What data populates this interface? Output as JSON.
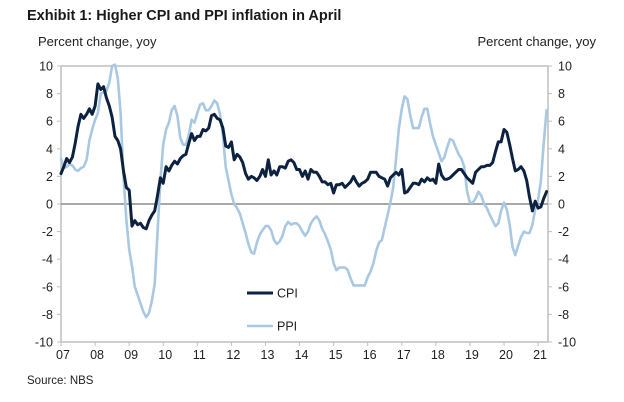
{
  "title": "Exhibit 1: Higher CPI and PPI inflation in April",
  "source": "Source: NBS",
  "colors": {
    "cpi": "#0d2240",
    "ppi": "#a9c8e2",
    "axis": "#bfbfbf",
    "zero": "#8a8a8a"
  },
  "chart_data": {
    "type": "line",
    "title": "Exhibit 1: Higher CPI and PPI inflation in April",
    "ylabel_left": "Percent change, yoy",
    "ylabel_right": "Percent change, yoy",
    "ylim": [
      -10,
      10
    ],
    "yticks": [
      10,
      8,
      6,
      4,
      2,
      0,
      -2,
      -4,
      -6,
      -8,
      -10
    ],
    "ytick_labels": [
      "10",
      "8",
      "6",
      "4",
      "2",
      "0",
      "-2",
      "-4",
      "-6",
      "-8",
      "-10"
    ],
    "xtick_labels": [
      "07",
      "08",
      "09",
      "10",
      "11",
      "12",
      "13",
      "14",
      "15",
      "16",
      "17",
      "18",
      "19",
      "20",
      "21"
    ],
    "x_start": "2007-01",
    "x_end": "2021-04",
    "frequency": "monthly",
    "grid": false,
    "legend": {
      "position": "bottom-center",
      "entries": [
        "CPI",
        "PPI"
      ]
    },
    "series": [
      {
        "name": "CPI",
        "values": [
          2.2,
          2.7,
          3.3,
          3.0,
          3.4,
          4.4,
          5.6,
          6.5,
          6.2,
          6.5,
          6.9,
          6.5,
          7.1,
          8.7,
          8.3,
          8.5,
          7.7,
          7.1,
          6.3,
          4.9,
          4.6,
          4.0,
          2.4,
          1.2,
          1.0,
          -1.6,
          -1.2,
          -1.5,
          -1.4,
          -1.7,
          -1.8,
          -1.2,
          -0.8,
          -0.5,
          0.6,
          1.9,
          1.5,
          2.7,
          2.4,
          2.8,
          3.1,
          2.9,
          3.3,
          3.5,
          3.6,
          4.4,
          5.1,
          4.6,
          4.9,
          4.9,
          5.4,
          5.3,
          5.5,
          6.4,
          6.5,
          6.2,
          6.1,
          5.5,
          4.2,
          4.1,
          4.5,
          3.2,
          3.6,
          3.4,
          3.0,
          2.2,
          1.8,
          2.0,
          1.9,
          1.7,
          2.0,
          2.5,
          2.0,
          3.2,
          2.1,
          2.4,
          2.1,
          2.7,
          2.7,
          2.6,
          3.1,
          3.2,
          3.0,
          2.5,
          2.5,
          2.0,
          2.4,
          1.8,
          2.5,
          2.3,
          2.3,
          2.0,
          1.6,
          1.6,
          1.4,
          1.5,
          0.8,
          1.4,
          1.4,
          1.5,
          1.2,
          1.4,
          1.6,
          2.0,
          1.6,
          1.3,
          1.5,
          1.6,
          1.8,
          2.3,
          2.3,
          2.3,
          2.0,
          1.9,
          1.8,
          1.3,
          1.9,
          2.1,
          2.3,
          2.1,
          2.5,
          0.8,
          0.9,
          1.2,
          1.5,
          1.5,
          1.4,
          1.8,
          1.6,
          1.9,
          1.7,
          1.8,
          1.5,
          2.9,
          2.1,
          1.8,
          1.8,
          1.9,
          2.1,
          2.3,
          2.5,
          2.5,
          2.2,
          1.9,
          1.7,
          1.5,
          2.3,
          2.5,
          2.7,
          2.7,
          2.8,
          2.8,
          3.0,
          3.8,
          4.5,
          4.5,
          5.4,
          5.2,
          4.3,
          3.3,
          2.4,
          2.5,
          2.7,
          2.4,
          1.7,
          0.5,
          -0.5,
          0.2,
          -0.3,
          -0.2,
          0.4,
          0.9
        ]
      },
      {
        "name": "PPI",
        "values": [
          3.3,
          2.6,
          2.7,
          2.9,
          2.8,
          2.5,
          2.4,
          2.6,
          2.7,
          3.2,
          4.6,
          5.4,
          6.1,
          6.6,
          8.0,
          8.1,
          8.2,
          8.8,
          10.0,
          10.1,
          9.1,
          6.6,
          2.0,
          -1.1,
          -3.3,
          -4.5,
          -6.0,
          -6.6,
          -7.2,
          -7.8,
          -8.2,
          -7.9,
          -7.0,
          -5.8,
          -2.1,
          1.7,
          4.3,
          5.4,
          5.9,
          6.8,
          7.1,
          6.4,
          4.8,
          4.3,
          4.3,
          5.0,
          6.1,
          5.9,
          6.6,
          7.2,
          7.3,
          6.8,
          6.8,
          7.1,
          7.5,
          7.3,
          6.5,
          5.0,
          2.7,
          1.7,
          0.7,
          0.0,
          -0.3,
          -0.7,
          -1.4,
          -2.1,
          -2.9,
          -3.5,
          -3.6,
          -2.8,
          -2.2,
          -1.9,
          -1.6,
          -1.6,
          -1.9,
          -2.6,
          -2.9,
          -2.7,
          -2.3,
          -1.6,
          -1.3,
          -1.5,
          -1.4,
          -1.4,
          -1.6,
          -2.0,
          -2.3,
          -2.0,
          -1.4,
          -1.1,
          -0.9,
          -1.2,
          -1.8,
          -2.2,
          -2.7,
          -3.3,
          -4.3,
          -4.8,
          -4.6,
          -4.6,
          -4.6,
          -4.8,
          -5.4,
          -5.9,
          -5.9,
          -5.9,
          -5.9,
          -5.9,
          -5.3,
          -4.9,
          -4.3,
          -3.4,
          -2.8,
          -2.6,
          -1.7,
          -0.8,
          0.1,
          1.2,
          3.3,
          5.5,
          6.9,
          7.8,
          7.6,
          6.4,
          5.5,
          5.5,
          5.5,
          6.3,
          6.9,
          6.9,
          5.8,
          4.9,
          4.3,
          3.7,
          3.1,
          3.4,
          4.1,
          4.7,
          4.6,
          4.1,
          3.6,
          3.3,
          2.7,
          0.9,
          0.1,
          0.1,
          0.4,
          0.9,
          0.6,
          0.0,
          -0.3,
          -0.8,
          -1.2,
          -1.6,
          -1.4,
          -0.5,
          0.1,
          -0.4,
          -1.5,
          -3.1,
          -3.7,
          -3.0,
          -2.4,
          -2.0,
          -2.1,
          -2.1,
          -1.5,
          -0.4,
          0.3,
          1.7,
          4.4,
          6.8
        ]
      }
    ]
  }
}
